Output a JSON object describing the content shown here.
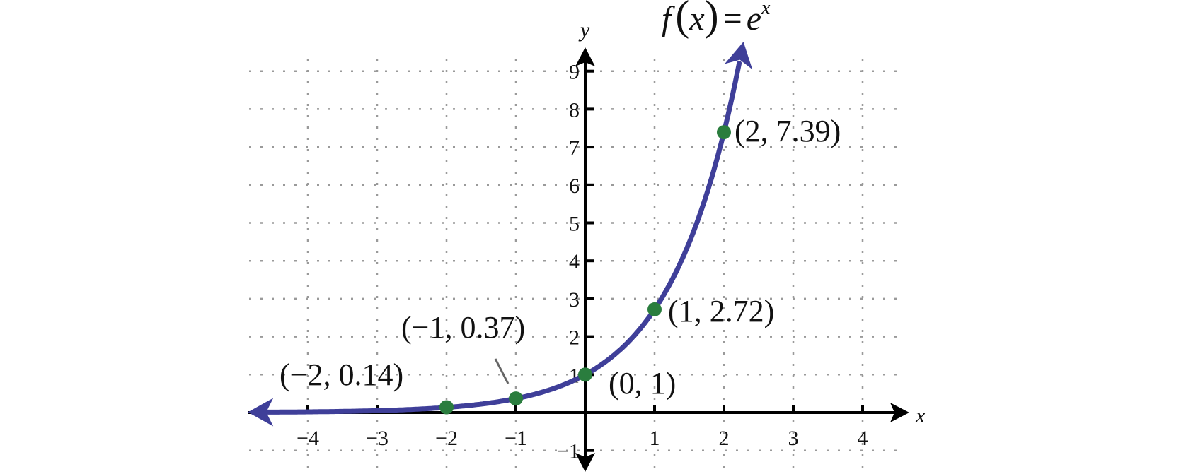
{
  "chart_data": {
    "type": "line",
    "title": "f(x) = e^x",
    "title_parts": {
      "f": "f",
      "lp": "(",
      "x": "x",
      "rp": ")",
      "eq": "=",
      "e": "e",
      "sup": "x"
    },
    "xlabel": "x",
    "ylabel": "y",
    "xlim": [
      -4.7,
      4.8
    ],
    "ylim": [
      -1.6,
      9.6
    ],
    "grid": true,
    "grid_style": "dotted",
    "x_ticks": [
      -4,
      -3,
      -2,
      -1,
      1,
      2,
      3,
      4
    ],
    "x_tick_labels": [
      "−4",
      "−3",
      "−2",
      "−1",
      "1",
      "2",
      "3",
      "4"
    ],
    "y_ticks": [
      -1,
      1,
      2,
      3,
      4,
      5,
      6,
      7,
      8,
      9
    ],
    "y_tick_labels": [
      "−1",
      "1",
      "2",
      "3",
      "4",
      "5",
      "6",
      "7",
      "8",
      "9"
    ],
    "series": [
      {
        "function": "exp(x)",
        "color": "#3f3f99",
        "arrows": "both"
      }
    ],
    "points": [
      {
        "x": -2,
        "y": 0.14,
        "label": "(−2, 0.14)"
      },
      {
        "x": -1,
        "y": 0.37,
        "label": "(−1, 0.37)"
      },
      {
        "x": 0,
        "y": 1,
        "label": "(0, 1)"
      },
      {
        "x": 1,
        "y": 2.72,
        "label": "(1, 2.72)"
      },
      {
        "x": 2,
        "y": 7.39,
        "label": "(2, 7.39)"
      }
    ],
    "point_color": "#2a7d3e",
    "grid_color": "#9a9a9a",
    "axis_color": "#000000"
  }
}
